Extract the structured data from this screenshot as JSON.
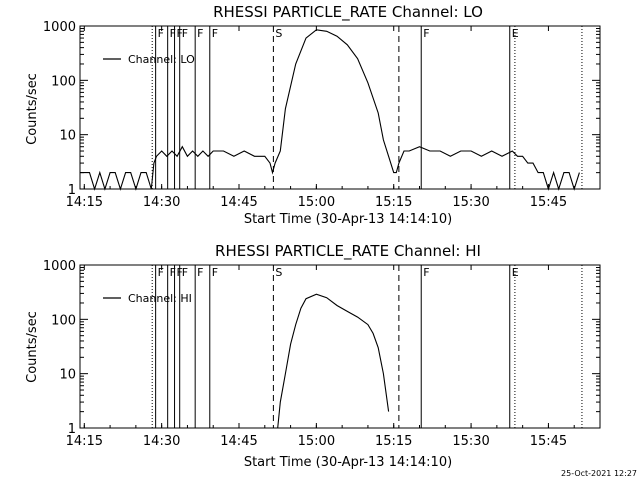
{
  "chart_data": [
    {
      "type": "line",
      "title": "RHESSI PARTICLE_RATE Channel: LO",
      "xlabel": "Start Time (30-Apr-13 14:14:10)",
      "ylabel": "Counts/sec",
      "y_scale": "log",
      "ylim": [
        1,
        1000
      ],
      "xlim": [
        "14:14:10",
        "15:55:00"
      ],
      "xticks": [
        "14:15",
        "14:30",
        "14:45",
        "15:00",
        "15:15",
        "15:30",
        "15:45"
      ],
      "yticks": [
        "1",
        "10",
        "100",
        "1000"
      ],
      "legend": {
        "entries": [
          "Channel: LO"
        ],
        "placement": "top-left"
      },
      "grid": false,
      "series": [
        {
          "name": "Channel: LO",
          "x": [
            "14:14:10",
            "14:16:00",
            "14:17:00",
            "14:18:00",
            "14:19:00",
            "14:20:00",
            "14:21:00",
            "14:22:00",
            "14:23:00",
            "14:24:00",
            "14:25:00",
            "14:26:00",
            "14:27:00",
            "14:28:00",
            "14:28:30",
            "14:29:00",
            "14:30:00",
            "14:31:00",
            "14:32:00",
            "14:33:00",
            "14:34:00",
            "14:35:00",
            "14:36:00",
            "14:37:00",
            "14:38:00",
            "14:39:00",
            "14:40:00",
            "14:42:00",
            "14:44:00",
            "14:46:00",
            "14:48:00",
            "14:50:00",
            "14:51:00",
            "14:51:30",
            "14:52:00",
            "14:53:00",
            "14:54:00",
            "14:56:00",
            "14:58:00",
            "15:00:00",
            "15:02:00",
            "15:04:00",
            "15:06:00",
            "15:08:00",
            "15:10:00",
            "15:12:00",
            "15:13:00",
            "15:14:00",
            "15:15:00",
            "15:15:30",
            "15:16:00",
            "15:17:00",
            "15:18:00",
            "15:20:00",
            "15:22:00",
            "15:24:00",
            "15:26:00",
            "15:28:00",
            "15:30:00",
            "15:32:00",
            "15:34:00",
            "15:36:00",
            "15:38:00",
            "15:39:00",
            "15:40:00",
            "15:41:00",
            "15:42:00",
            "15:43:00",
            "15:44:00",
            "15:45:00",
            "15:46:00",
            "15:47:00",
            "15:48:00",
            "15:49:00",
            "15:50:00",
            "15:51:00"
          ],
          "values": [
            2,
            2,
            1,
            2,
            1,
            2,
            2,
            1,
            2,
            2,
            1,
            2,
            2,
            1,
            3,
            4,
            5,
            4,
            5,
            4,
            6,
            4,
            5,
            4,
            5,
            4,
            5,
            5,
            4,
            5,
            4,
            4,
            3,
            2,
            3,
            5,
            30,
            200,
            600,
            850,
            800,
            650,
            450,
            250,
            90,
            25,
            8,
            4,
            2,
            2,
            3,
            5,
            5,
            6,
            5,
            5,
            4,
            5,
            5,
            4,
            5,
            4,
            5,
            4,
            4,
            3,
            3,
            2,
            2,
            1,
            2,
            1,
            2,
            2,
            1,
            2
          ]
        }
      ],
      "markers": [
        {
          "label": "F",
          "time": "14:28:50"
        },
        {
          "label": "F",
          "time": "14:31:10"
        },
        {
          "label": "F",
          "time": "14:32:30"
        },
        {
          "label": "F",
          "time": "14:33:30"
        },
        {
          "label": "F",
          "time": "14:36:30"
        },
        {
          "label": "F",
          "time": "14:39:20"
        },
        {
          "label": "S",
          "time": "14:51:40"
        },
        {
          "label": "F",
          "time": "15:20:20"
        },
        {
          "label": "E",
          "time": "15:37:30"
        }
      ]
    },
    {
      "type": "line",
      "title": "RHESSI PARTICLE_RATE Channel: HI",
      "xlabel": "Start Time (30-Apr-13 14:14:10)",
      "ylabel": "Counts/sec",
      "y_scale": "log",
      "ylim": [
        1,
        1000
      ],
      "xlim": [
        "14:14:10",
        "15:55:00"
      ],
      "xticks": [
        "14:15",
        "14:30",
        "14:45",
        "15:00",
        "15:15",
        "15:30",
        "15:45"
      ],
      "yticks": [
        "1",
        "10",
        "100",
        "1000"
      ],
      "legend": {
        "entries": [
          "Channel: HI"
        ],
        "placement": "top-left"
      },
      "grid": false,
      "series": [
        {
          "name": "Channel: HI",
          "x": [
            "14:52:30",
            "14:53:00",
            "14:54:00",
            "14:55:00",
            "14:56:00",
            "14:57:00",
            "14:58:00",
            "15:00:00",
            "15:02:00",
            "15:04:00",
            "15:06:00",
            "15:08:00",
            "15:10:00",
            "15:11:00",
            "15:12:00",
            "15:13:00",
            "15:14:00"
          ],
          "values": [
            1,
            3,
            10,
            35,
            80,
            160,
            240,
            290,
            250,
            180,
            140,
            110,
            80,
            55,
            30,
            10,
            2
          ]
        }
      ],
      "markers": [
        {
          "label": "F",
          "time": "14:28:50"
        },
        {
          "label": "F",
          "time": "14:31:10"
        },
        {
          "label": "F",
          "time": "14:32:30"
        },
        {
          "label": "F",
          "time": "14:33:30"
        },
        {
          "label": "F",
          "time": "14:36:30"
        },
        {
          "label": "F",
          "time": "14:39:20"
        },
        {
          "label": "S",
          "time": "14:51:40"
        },
        {
          "label": "F",
          "time": "15:20:20"
        },
        {
          "label": "E",
          "time": "15:37:30"
        }
      ]
    }
  ],
  "footer": {
    "timestamp": "25-Oct-2021 12:27"
  }
}
